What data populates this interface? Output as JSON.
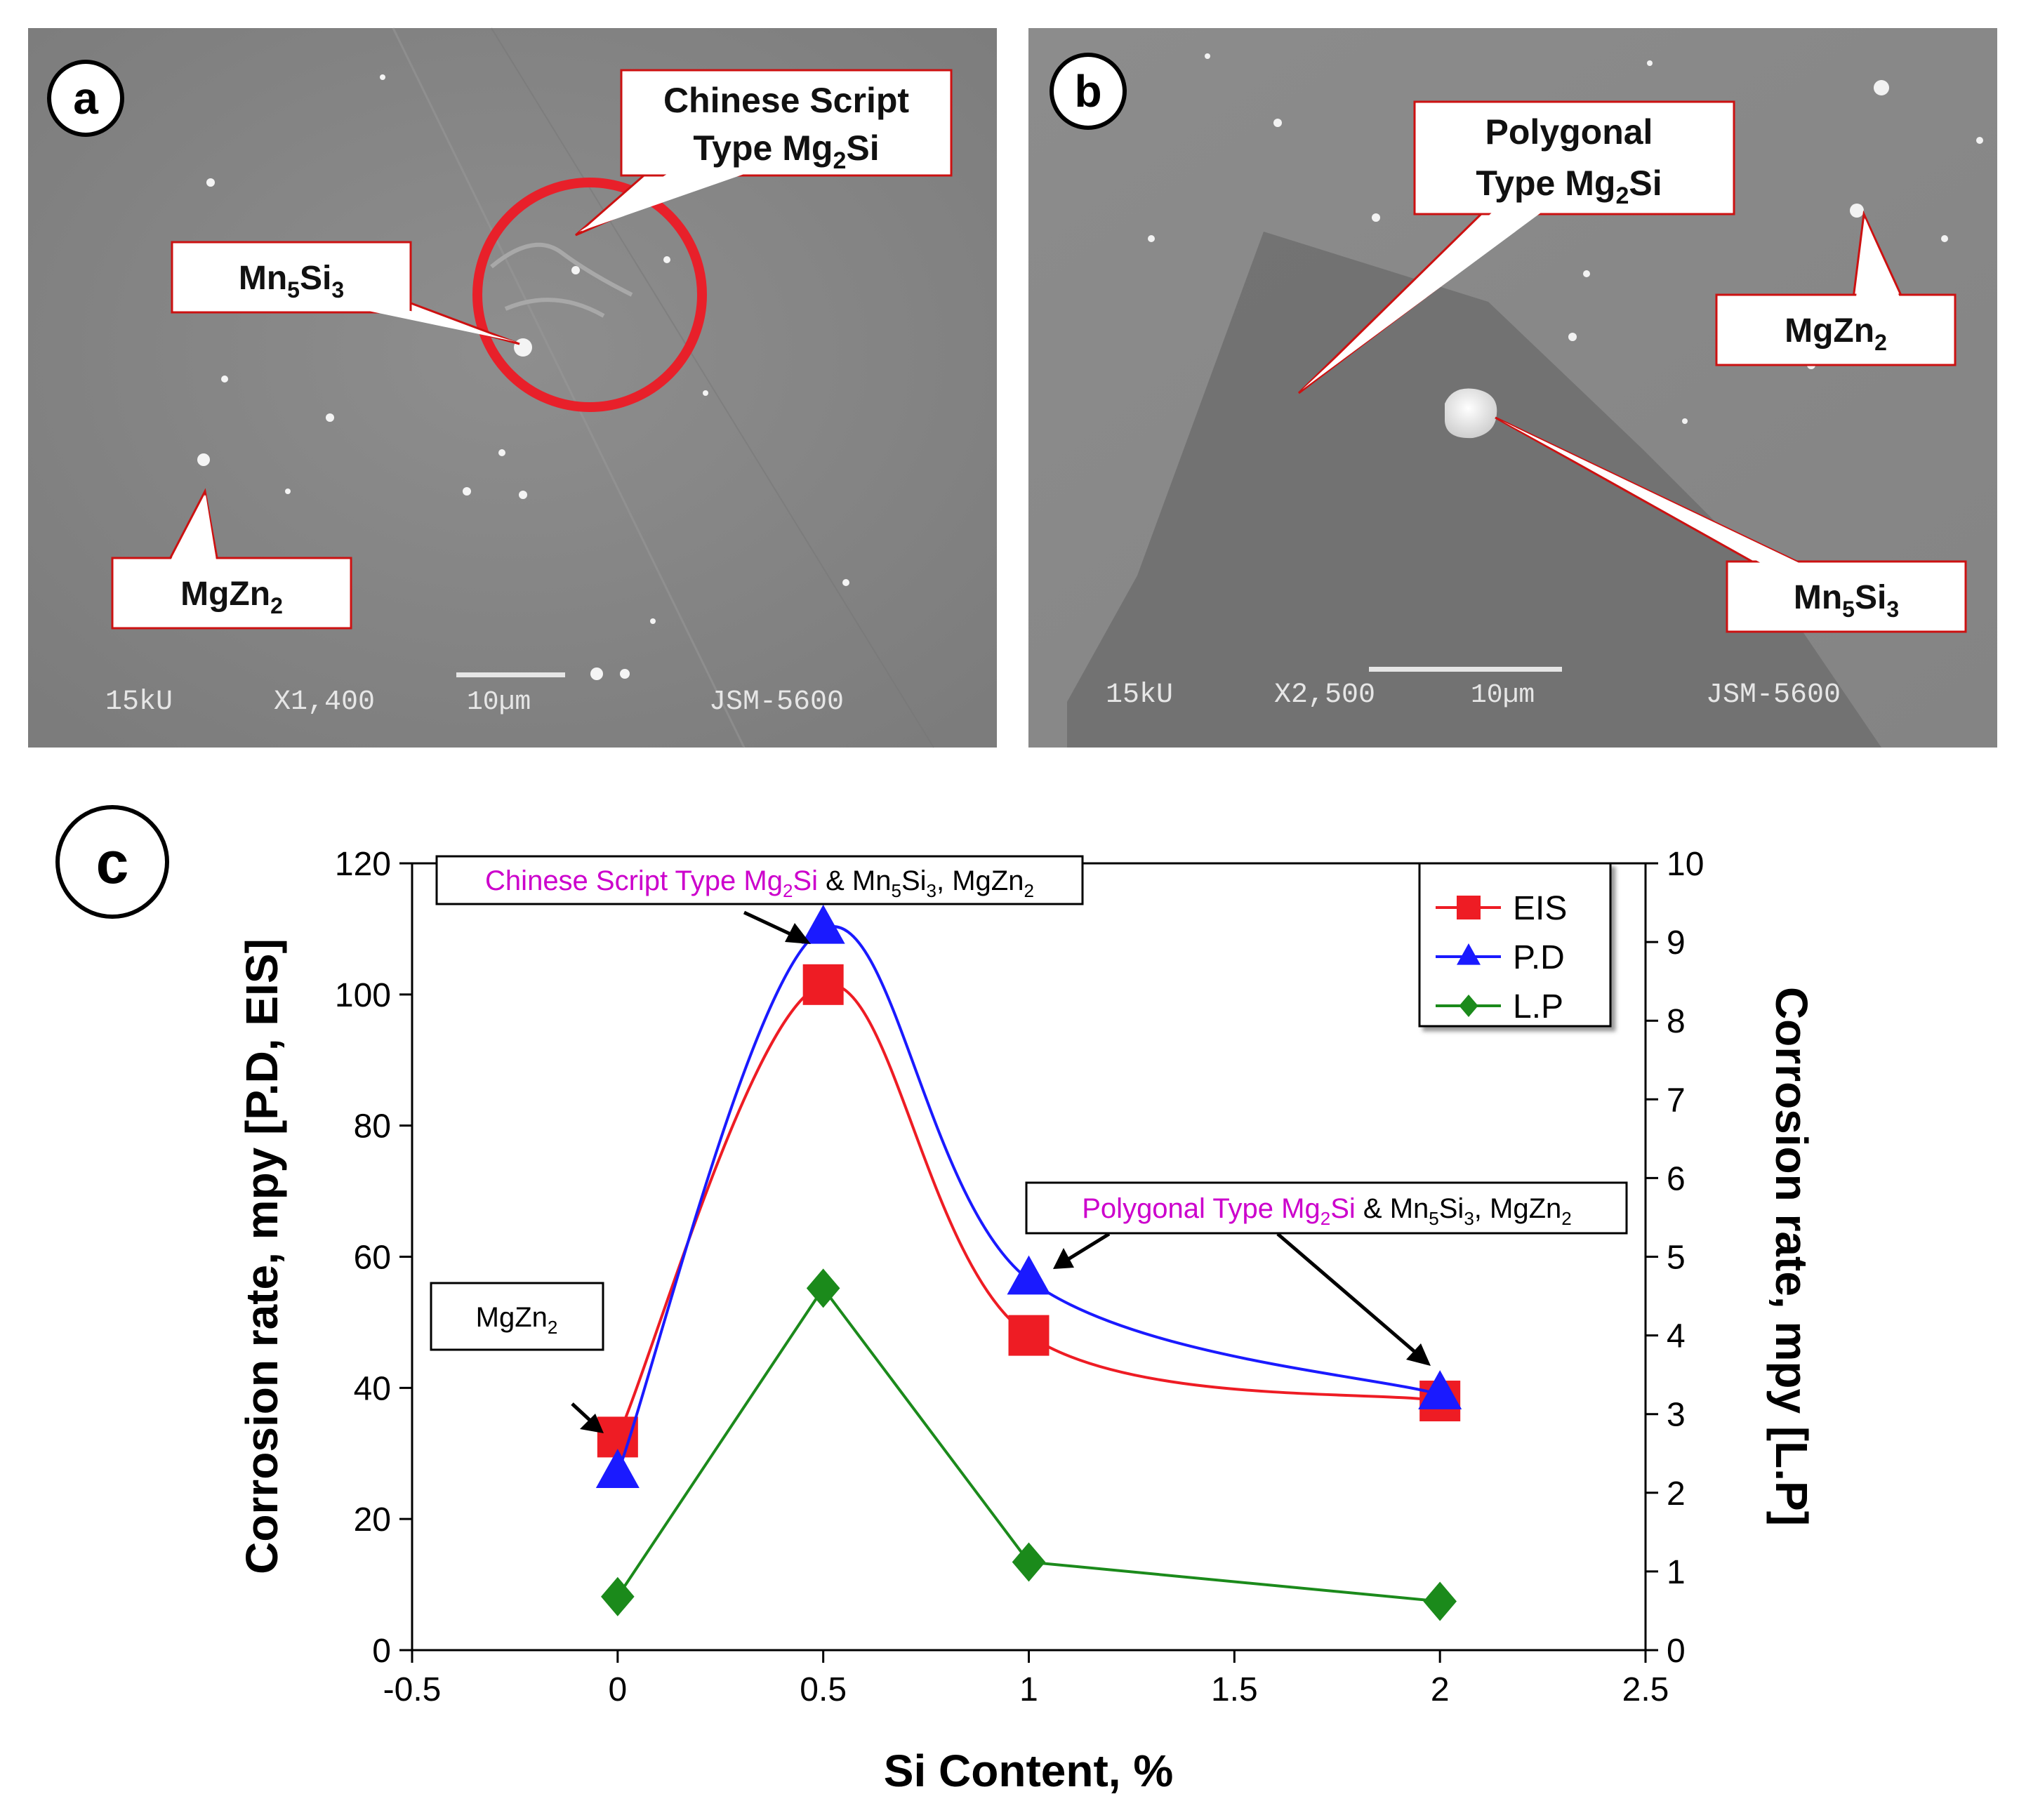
{
  "panels": {
    "a": {
      "letter": "a",
      "sem": {
        "voltage": "15kU",
        "magnification": "X1,400",
        "scale": "10µm",
        "instrument": "JSM-5600"
      },
      "callouts": {
        "chinese": {
          "line1": "Chinese Script",
          "line2_main": "Type Mg",
          "line2_sub": "2",
          "line2_end": "Si"
        },
        "mn5si3": {
          "main1": "Mn",
          "sub1": "5",
          "main2": "Si",
          "sub2": "3"
        },
        "mgzn2": {
          "main": "MgZn",
          "sub": "2"
        }
      }
    },
    "b": {
      "letter": "b",
      "sem": {
        "voltage": "15kU",
        "magnification": "X2,500",
        "scale": "10µm",
        "instrument": "JSM-5600"
      },
      "callouts": {
        "polygonal": {
          "line1": "Polygonal",
          "line2_main": "Type Mg",
          "line2_sub": "2",
          "line2_end": "Si"
        },
        "mgzn2": {
          "main": "MgZn",
          "sub": "2"
        },
        "mn5si3": {
          "main1": "Mn",
          "sub1": "5",
          "main2": "Si",
          "sub2": "3"
        }
      }
    },
    "c": {
      "letter": "c"
    }
  },
  "chart_data": {
    "type": "line",
    "xlabel": "Si Content, %",
    "ylabel": "Corrosion rate, mpy [P.D, EIS]",
    "y2label": "Corrosion rate, mpy [L.P]",
    "xlim": [
      -0.5,
      2.5
    ],
    "ylim": [
      0,
      120
    ],
    "y2lim": [
      0,
      10
    ],
    "xticks": [
      "-0.5",
      "0",
      "0.5",
      "1",
      "1.5",
      "2",
      "2.5"
    ],
    "yticks": [
      "0",
      "20",
      "40",
      "60",
      "80",
      "100",
      "120"
    ],
    "y2ticks": [
      "0",
      "1",
      "2",
      "3",
      "4",
      "5",
      "6",
      "7",
      "8",
      "9",
      "10"
    ],
    "x": [
      0,
      0.5,
      1,
      2
    ],
    "series": [
      {
        "name": "EIS",
        "axis": "left",
        "marker": "square",
        "color": "#ee1c24",
        "values": [
          32.5,
          101.5,
          48,
          38
        ]
      },
      {
        "name": "P.D",
        "axis": "left",
        "marker": "triangle",
        "color": "#1a1aff",
        "values": [
          27,
          110,
          56.5,
          39
        ]
      },
      {
        "name": "L.P",
        "axis": "right",
        "marker": "diamond",
        "color": "#1b8a1b",
        "values": [
          0.68,
          4.6,
          1.12,
          0.62
        ]
      }
    ],
    "legend_position": "top-right",
    "annotations": {
      "top": {
        "magenta": "Chinese Script Type Mg",
        "m_sub": "2",
        "m_end": "Si",
        "black1": " & Mn",
        "b_sub1": "5",
        "black2": "Si",
        "b_sub2": "3",
        "black3": ", MgZn",
        "b_sub3": "2"
      },
      "right": {
        "magenta": "Polygonal Type Mg",
        "m_sub": "2",
        "m_end": "Si",
        "black1": " & Mn",
        "b_sub1": "5",
        "black2": "Si",
        "b_sub2": "3",
        "black3": ", MgZn",
        "b_sub3": "2"
      },
      "left": {
        "main": "MgZn",
        "sub": "2"
      }
    }
  },
  "colors": {
    "magenta": "#cc00cc",
    "circle": "#e8202a"
  }
}
